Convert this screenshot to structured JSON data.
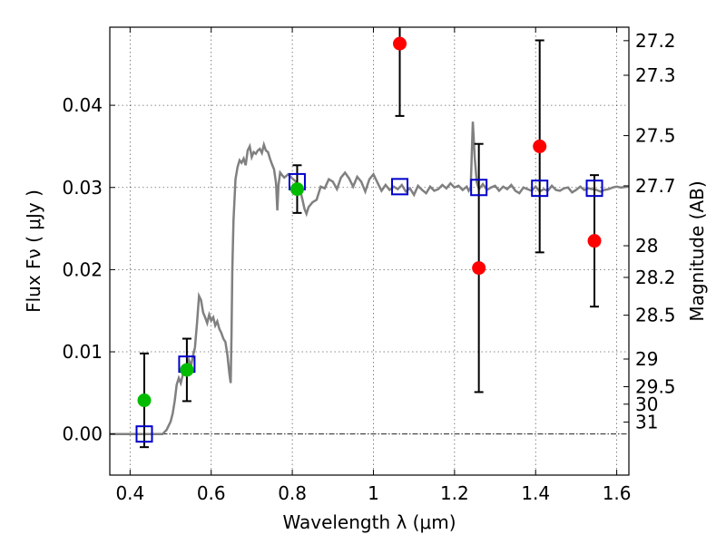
{
  "chart_data": {
    "type": "scatter",
    "title": "",
    "xlabel": "Wavelength  λ (μm)",
    "ylabel": "Flux  Fν  ( μJy )",
    "ylabel_right": "Magnitude (AB)",
    "xlim": [
      0.35,
      1.63
    ],
    "ylim": [
      -0.005,
      0.0495
    ],
    "grid": true,
    "x_ticks": [
      {
        "value": 0.4,
        "label": "0.4"
      },
      {
        "value": 0.6,
        "label": "0.6"
      },
      {
        "value": 0.8,
        "label": "0.8"
      },
      {
        "value": 1.0,
        "label": "1"
      },
      {
        "value": 1.2,
        "label": "1.2"
      },
      {
        "value": 1.4,
        "label": "1.4"
      },
      {
        "value": 1.6,
        "label": "1.6"
      }
    ],
    "y_ticks": [
      {
        "value": 0.0,
        "label": "0.00"
      },
      {
        "value": 0.01,
        "label": "0.01"
      },
      {
        "value": 0.02,
        "label": "0.02"
      },
      {
        "value": 0.03,
        "label": "0.03"
      },
      {
        "value": 0.04,
        "label": "0.04"
      }
    ],
    "right_ticks": [
      {
        "mag": 27.2,
        "label": "27.2"
      },
      {
        "mag": 27.3,
        "label": "27.3"
      },
      {
        "mag": 27.5,
        "label": "27.5"
      },
      {
        "mag": 27.7,
        "label": "27.7"
      },
      {
        "mag": 28.0,
        "label": "28"
      },
      {
        "mag": 28.2,
        "label": "28.2"
      },
      {
        "mag": 28.5,
        "label": "28.5"
      },
      {
        "mag": 29.0,
        "label": "29"
      },
      {
        "mag": 29.5,
        "label": "29.5"
      },
      {
        "mag": 30.0,
        "label": "30"
      },
      {
        "mag": 31.0,
        "label": "31"
      }
    ],
    "model_spectrum": {
      "color": "#808080",
      "points": [
        [
          0.35,
          0.0
        ],
        [
          0.48,
          0.0
        ],
        [
          0.49,
          0.0005
        ],
        [
          0.5,
          0.0015
        ],
        [
          0.505,
          0.0025
        ],
        [
          0.51,
          0.004
        ],
        [
          0.515,
          0.006
        ],
        [
          0.52,
          0.0068
        ],
        [
          0.525,
          0.0062
        ],
        [
          0.53,
          0.0072
        ],
        [
          0.535,
          0.0075
        ],
        [
          0.54,
          0.008
        ],
        [
          0.545,
          0.009
        ],
        [
          0.55,
          0.0082
        ],
        [
          0.555,
          0.0095
        ],
        [
          0.56,
          0.0105
        ],
        [
          0.565,
          0.0135
        ],
        [
          0.57,
          0.0168
        ],
        [
          0.575,
          0.0163
        ],
        [
          0.58,
          0.0148
        ],
        [
          0.585,
          0.0142
        ],
        [
          0.59,
          0.0135
        ],
        [
          0.595,
          0.0145
        ],
        [
          0.6,
          0.0138
        ],
        [
          0.605,
          0.0142
        ],
        [
          0.61,
          0.0132
        ],
        [
          0.615,
          0.0137
        ],
        [
          0.62,
          0.0128
        ],
        [
          0.625,
          0.0123
        ],
        [
          0.63,
          0.0116
        ],
        [
          0.635,
          0.0112
        ],
        [
          0.64,
          0.0096
        ],
        [
          0.645,
          0.0073
        ],
        [
          0.648,
          0.0062
        ],
        [
          0.65,
          0.012
        ],
        [
          0.652,
          0.02
        ],
        [
          0.655,
          0.026
        ],
        [
          0.66,
          0.031
        ],
        [
          0.665,
          0.0325
        ],
        [
          0.67,
          0.0333
        ],
        [
          0.675,
          0.033
        ],
        [
          0.68,
          0.0335
        ],
        [
          0.685,
          0.0327
        ],
        [
          0.69,
          0.0345
        ],
        [
          0.695,
          0.035
        ],
        [
          0.7,
          0.0337
        ],
        [
          0.705,
          0.0343
        ],
        [
          0.71,
          0.0341
        ],
        [
          0.715,
          0.0345
        ],
        [
          0.72,
          0.0347
        ],
        [
          0.725,
          0.0342
        ],
        [
          0.73,
          0.0352
        ],
        [
          0.735,
          0.0345
        ],
        [
          0.74,
          0.0343
        ],
        [
          0.745,
          0.0335
        ],
        [
          0.75,
          0.0328
        ],
        [
          0.755,
          0.0322
        ],
        [
          0.76,
          0.0305
        ],
        [
          0.763,
          0.0272
        ],
        [
          0.766,
          0.0303
        ],
        [
          0.77,
          0.0318
        ],
        [
          0.775,
          0.0315
        ],
        [
          0.78,
          0.0312
        ],
        [
          0.79,
          0.0316
        ],
        [
          0.8,
          0.0311
        ],
        [
          0.805,
          0.0309
        ],
        [
          0.81,
          0.0306
        ],
        [
          0.82,
          0.0296
        ],
        [
          0.825,
          0.0285
        ],
        [
          0.83,
          0.0274
        ],
        [
          0.835,
          0.0268
        ],
        [
          0.84,
          0.0276
        ],
        [
          0.85,
          0.0282
        ],
        [
          0.86,
          0.0285
        ],
        [
          0.87,
          0.0301
        ],
        [
          0.88,
          0.0299
        ],
        [
          0.89,
          0.031
        ],
        [
          0.9,
          0.0307
        ],
        [
          0.91,
          0.0298
        ],
        [
          0.92,
          0.0312
        ],
        [
          0.93,
          0.0318
        ],
        [
          0.94,
          0.0311
        ],
        [
          0.95,
          0.0301
        ],
        [
          0.96,
          0.0313
        ],
        [
          0.97,
          0.0307
        ],
        [
          0.98,
          0.0295
        ],
        [
          0.99,
          0.031
        ],
        [
          1.0,
          0.0316
        ],
        [
          1.01,
          0.0306
        ],
        [
          1.02,
          0.0296
        ],
        [
          1.03,
          0.0303
        ],
        [
          1.04,
          0.0297
        ],
        [
          1.05,
          0.0301
        ],
        [
          1.06,
          0.0298
        ],
        [
          1.07,
          0.0303
        ],
        [
          1.08,
          0.0295
        ],
        [
          1.09,
          0.0299
        ],
        [
          1.1,
          0.0291
        ],
        [
          1.11,
          0.0302
        ],
        [
          1.12,
          0.0297
        ],
        [
          1.13,
          0.0293
        ],
        [
          1.14,
          0.0301
        ],
        [
          1.15,
          0.0296
        ],
        [
          1.16,
          0.0298
        ],
        [
          1.17,
          0.0303
        ],
        [
          1.18,
          0.0299
        ],
        [
          1.19,
          0.0305
        ],
        [
          1.2,
          0.03
        ],
        [
          1.21,
          0.0302
        ],
        [
          1.22,
          0.0297
        ],
        [
          1.23,
          0.0301
        ],
        [
          1.235,
          0.0296
        ],
        [
          1.24,
          0.03
        ],
        [
          1.245,
          0.038
        ],
        [
          1.25,
          0.0335
        ],
        [
          1.255,
          0.0306
        ],
        [
          1.26,
          0.0298
        ],
        [
          1.27,
          0.0304
        ],
        [
          1.28,
          0.0297
        ],
        [
          1.29,
          0.03
        ],
        [
          1.3,
          0.0302
        ],
        [
          1.31,
          0.0296
        ],
        [
          1.32,
          0.0301
        ],
        [
          1.33,
          0.0298
        ],
        [
          1.34,
          0.0303
        ],
        [
          1.35,
          0.0296
        ],
        [
          1.36,
          0.0293
        ],
        [
          1.37,
          0.03
        ],
        [
          1.38,
          0.0298
        ],
        [
          1.39,
          0.0296
        ],
        [
          1.4,
          0.0301
        ],
        [
          1.41,
          0.0295
        ],
        [
          1.42,
          0.0298
        ],
        [
          1.43,
          0.0296
        ],
        [
          1.44,
          0.0302
        ],
        [
          1.45,
          0.0297
        ],
        [
          1.46,
          0.0296
        ],
        [
          1.47,
          0.0299
        ],
        [
          1.48,
          0.03
        ],
        [
          1.49,
          0.0294
        ],
        [
          1.5,
          0.0297
        ],
        [
          1.51,
          0.0301
        ],
        [
          1.52,
          0.0297
        ],
        [
          1.53,
          0.0299
        ],
        [
          1.54,
          0.0298
        ],
        [
          1.55,
          0.0297
        ],
        [
          1.56,
          0.0295
        ],
        [
          1.57,
          0.0297
        ],
        [
          1.58,
          0.0298
        ],
        [
          1.59,
          0.03
        ],
        [
          1.6,
          0.0301
        ],
        [
          1.61,
          0.03
        ],
        [
          1.63,
          0.0301
        ]
      ]
    },
    "series": [
      {
        "marker": "circle",
        "color": "#00bb00",
        "points": [
          {
            "x": 0.435,
            "y": 0.0041,
            "err": 0.0057
          },
          {
            "x": 0.54,
            "y": 0.0078,
            "err": 0.0038
          },
          {
            "x": 0.812,
            "y": 0.0298,
            "err": 0.0029
          }
        ]
      },
      {
        "marker": "circle",
        "color": "#ff0000",
        "points": [
          {
            "x": 1.065,
            "y": 0.0475,
            "err": 0.0088
          },
          {
            "x": 1.26,
            "y": 0.0202,
            "err": 0.0151
          },
          {
            "x": 1.41,
            "y": 0.035,
            "err": 0.0129
          },
          {
            "x": 1.545,
            "y": 0.0235,
            "err": 0.008
          }
        ]
      },
      {
        "marker": "square-open",
        "color": "#0000cc",
        "points": [
          {
            "x": 0.435,
            "y": 0.0
          },
          {
            "x": 0.54,
            "y": 0.0085
          },
          {
            "x": 0.812,
            "y": 0.0307
          },
          {
            "x": 1.065,
            "y": 0.0301
          },
          {
            "x": 1.26,
            "y": 0.03
          },
          {
            "x": 1.41,
            "y": 0.0299
          },
          {
            "x": 1.545,
            "y": 0.0299
          }
        ]
      }
    ]
  }
}
